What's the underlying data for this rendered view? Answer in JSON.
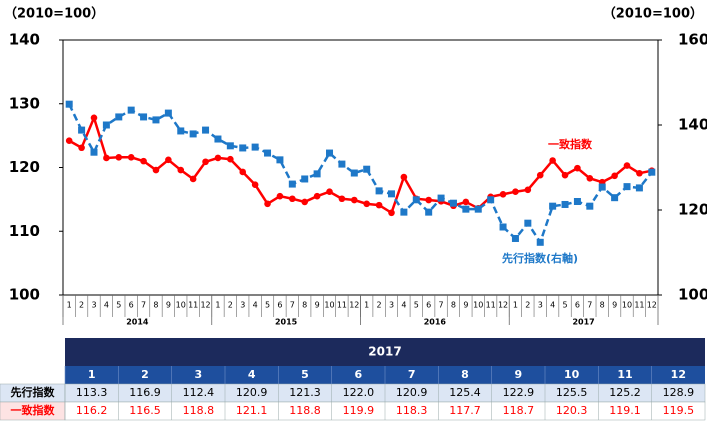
{
  "chart_data": {
    "type": "line",
    "y_label": "（2010=100）",
    "y2_label": "（2010=100）",
    "categories": [
      "1",
      "2",
      "3",
      "4",
      "5",
      "6",
      "7",
      "8",
      "9",
      "10",
      "11",
      "12",
      "1",
      "2",
      "3",
      "4",
      "5",
      "6",
      "7",
      "8",
      "9",
      "10",
      "11",
      "12",
      "1",
      "2",
      "3",
      "4",
      "5",
      "6",
      "7",
      "8",
      "9",
      "10",
      "11",
      "12",
      "1",
      "2",
      "3",
      "4",
      "5",
      "6",
      "7",
      "8",
      "9",
      "10",
      "11",
      "12"
    ],
    "years": [
      "2014",
      "2015",
      "2016",
      "2017"
    ],
    "ylim": [
      100,
      140
    ],
    "yticks": [
      100,
      110,
      120,
      130,
      140
    ],
    "y2lim": [
      100,
      160
    ],
    "y2ticks": [
      100,
      120,
      140,
      160
    ],
    "series": [
      {
        "name": "一致指数",
        "color": "#ff0000",
        "axis": "y",
        "marker": "circle",
        "values": [
          124.2,
          123.1,
          127.8,
          121.5,
          121.6,
          121.6,
          121.0,
          119.6,
          121.2,
          119.6,
          118.2,
          120.9,
          121.5,
          121.3,
          119.3,
          117.3,
          114.3,
          115.5,
          115.1,
          114.6,
          115.5,
          116.2,
          115.1,
          114.9,
          114.3,
          114.1,
          112.9,
          118.5,
          115.1,
          114.9,
          114.7,
          114.0,
          114.6,
          113.6,
          115.4,
          115.8,
          116.2,
          116.5,
          118.8,
          121.1,
          118.8,
          119.9,
          118.3,
          117.7,
          118.7,
          120.3,
          119.1,
          119.5
        ]
      },
      {
        "name": "先行指数(右軸)",
        "color": "#1e78c8",
        "axis": "y2",
        "marker": "square",
        "dashed": true,
        "values": [
          144.9,
          138.8,
          133.6,
          140.0,
          141.9,
          143.5,
          141.9,
          141.2,
          142.8,
          138.6,
          137.9,
          138.8,
          136.7,
          135.1,
          134.6,
          134.8,
          133.4,
          131.8,
          126.1,
          127.3,
          128.5,
          133.4,
          130.8,
          128.7,
          129.6,
          124.5,
          123.8,
          119.5,
          122.4,
          119.5,
          122.8,
          121.6,
          120.2,
          120.2,
          122.4,
          116.0,
          113.3,
          116.9,
          112.4,
          120.9,
          121.3,
          122.0,
          120.9,
          125.4,
          122.9,
          125.5,
          125.2,
          128.9
        ]
      }
    ]
  },
  "table": {
    "year": "2017",
    "months": [
      "1",
      "2",
      "3",
      "4",
      "5",
      "6",
      "7",
      "8",
      "9",
      "10",
      "11",
      "12"
    ],
    "rows": [
      {
        "label": "先行指数",
        "cells": [
          "113.3",
          "116.9",
          "112.4",
          "120.9",
          "121.3",
          "122.0",
          "120.9",
          "125.4",
          "122.9",
          "125.5",
          "125.2",
          "128.9"
        ]
      },
      {
        "label": "一致指数",
        "cells": [
          "116.2",
          "116.5",
          "118.8",
          "121.1",
          "118.8",
          "119.9",
          "118.3",
          "117.7",
          "118.7",
          "120.3",
          "119.1",
          "119.5"
        ]
      }
    ]
  }
}
